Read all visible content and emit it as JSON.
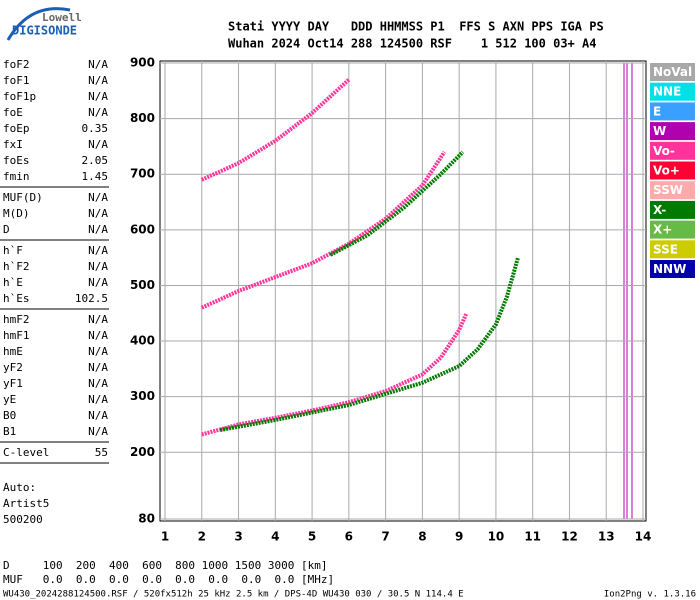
{
  "logo": {
    "top": "Lowell",
    "bottom": "DIGISONDE"
  },
  "header": [
    "Stati YYYY DAY   DDD HHMMSS P1  FFS S AXN PPS IGA PS",
    "Wuhan 2024 Oct14 288 124500 RSF    1 512 100 03+ A4"
  ],
  "params": [
    [
      [
        "foF2",
        "N/A"
      ],
      [
        "foF1",
        "N/A"
      ],
      [
        "foF1p",
        "N/A"
      ],
      [
        "foE",
        "N/A"
      ],
      [
        "foEp",
        "0.35"
      ],
      [
        "fxI",
        "N/A"
      ],
      [
        "foEs",
        "2.05"
      ],
      [
        "fmin",
        "1.45"
      ]
    ],
    [
      [
        "MUF(D)",
        "N/A"
      ],
      [
        "M(D)",
        "N/A"
      ],
      [
        "D",
        "N/A"
      ]
    ],
    [
      [
        "h`F",
        "N/A"
      ],
      [
        "h`F2",
        "N/A"
      ],
      [
        "h`E",
        "N/A"
      ],
      [
        "h`Es",
        "102.5"
      ]
    ],
    [
      [
        "hmF2",
        "N/A"
      ],
      [
        "hmF1",
        "N/A"
      ],
      [
        "hmE",
        "N/A"
      ],
      [
        "yF2",
        "N/A"
      ],
      [
        "yF1",
        "N/A"
      ],
      [
        "yE",
        "N/A"
      ],
      [
        "B0",
        "N/A"
      ],
      [
        "B1",
        "N/A"
      ]
    ],
    [
      [
        "C-level",
        "55"
      ]
    ]
  ],
  "auto": [
    "Auto:",
    "Artist5",
    "500200"
  ],
  "legend": [
    {
      "name": "NoVal",
      "color": "#a8a8a8"
    },
    {
      "name": "NNE",
      "color": "#00e0e8"
    },
    {
      "name": "E",
      "color": "#3aa0ff"
    },
    {
      "name": "W",
      "color": "#b000b0"
    },
    {
      "name": "Vo-",
      "color": "#ff3399"
    },
    {
      "name": "Vo+",
      "color": "#ff0033"
    },
    {
      "name": "SSW",
      "color": "#ffaaaa"
    },
    {
      "name": "X-",
      "color": "#007a00"
    },
    {
      "name": "X+",
      "color": "#66bb44"
    },
    {
      "name": "SSE",
      "color": "#cccc00"
    },
    {
      "name": "NNW",
      "color": "#0000aa"
    }
  ],
  "footer": [
    "D     100  200  400  600  800 1000 1500 3000 [km]",
    "MUF   0.0  0.0  0.0  0.0  0.0  0.0  0.0  0.0 [MHz]"
  ],
  "file_info": "WU430_2024288124500.RSF / 520fx512h 25 kHz 2.5 km / DPS-4D WU430 030 / 30.5 N 114.4 E",
  "version": "Ion2Png v. 1.3.16",
  "chart_data": {
    "type": "scatter",
    "xlim": [
      1,
      14
    ],
    "ylim": [
      80,
      900
    ],
    "xticks": [
      1,
      2,
      3,
      4,
      5,
      6,
      7,
      8,
      9,
      10,
      11,
      12,
      13,
      14
    ],
    "yticks": [
      80,
      200,
      300,
      400,
      500,
      600,
      700,
      800,
      900
    ],
    "grid": true,
    "series": [
      {
        "name": "Vo-",
        "color": "#ff3399",
        "x": [
          2.0,
          3.0,
          4.0,
          5.0,
          6.0,
          7.0,
          8.0,
          8.5,
          9.0,
          9.2
        ],
        "values": [
          232,
          250,
          262,
          275,
          290,
          310,
          340,
          370,
          420,
          450
        ]
      },
      {
        "name": "X-",
        "color": "#007a00",
        "x": [
          2.5,
          4.0,
          6.0,
          8.0,
          9.0,
          9.5,
          10.0,
          10.3,
          10.6
        ],
        "values": [
          240,
          258,
          285,
          325,
          355,
          385,
          430,
          480,
          550
        ]
      },
      {
        "name": "Vo-",
        "color": "#ff3399",
        "x": [
          2.0,
          3.0,
          4.0,
          5.0,
          6.0,
          7.0,
          8.0,
          8.6
        ],
        "values": [
          460,
          490,
          515,
          540,
          575,
          620,
          680,
          740
        ]
      },
      {
        "name": "X-",
        "color": "#007a00",
        "x": [
          5.5,
          6.5,
          7.5,
          8.5,
          9.1
        ],
        "values": [
          555,
          590,
          640,
          700,
          740
        ]
      },
      {
        "name": "Vo-",
        "color": "#ff3399",
        "x": [
          2.0,
          3.0,
          4.0,
          5.0,
          6.0
        ],
        "values": [
          690,
          720,
          760,
          810,
          870
        ]
      }
    ]
  }
}
